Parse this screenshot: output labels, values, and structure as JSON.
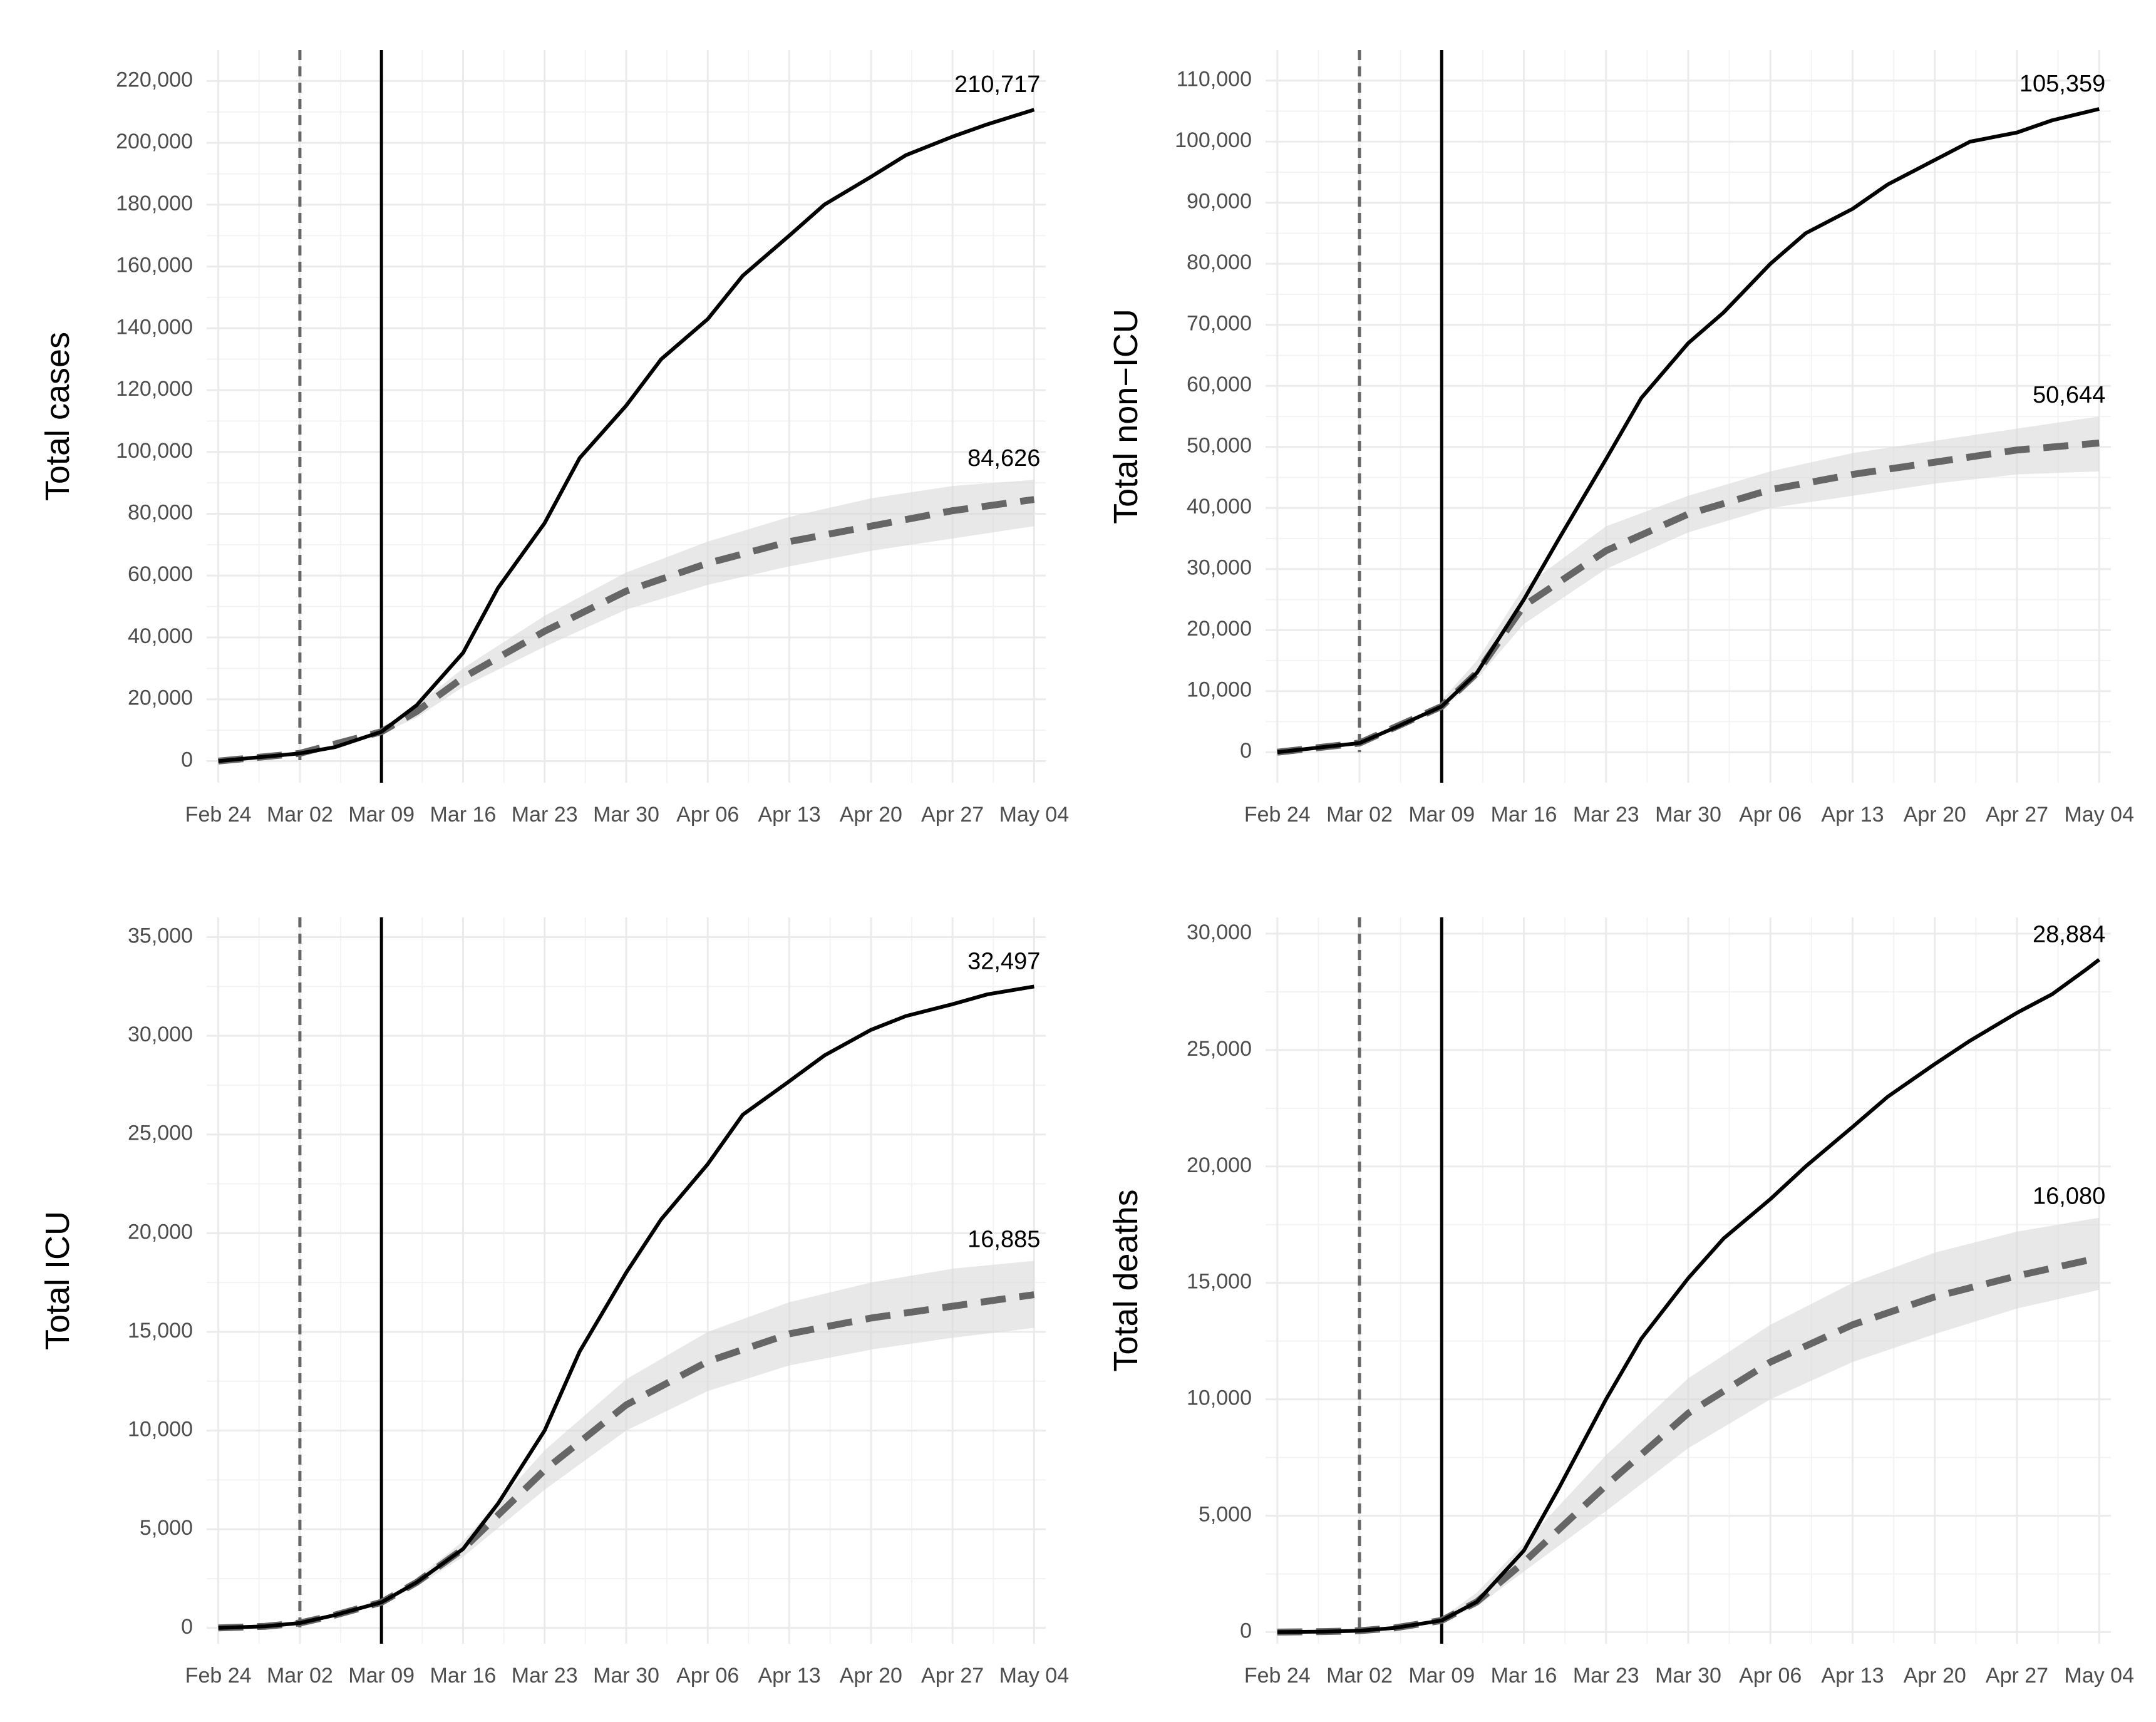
{
  "chart_data": [
    {
      "type": "line",
      "ylabel": "Total cases",
      "x_tick_labels": [
        "Feb 24",
        "Mar 02",
        "Mar 09",
        "Mar 16",
        "Mar 23",
        "Mar 30",
        "Apr 06",
        "Apr 13",
        "Apr 20",
        "Apr 27",
        "May 04"
      ],
      "y_ticks": [
        0,
        20000,
        40000,
        60000,
        80000,
        100000,
        120000,
        140000,
        160000,
        180000,
        200000,
        220000
      ],
      "y_tick_labels": [
        "0",
        "20,000",
        "40,000",
        "60,000",
        "80,000",
        "100,000",
        "120,000",
        "140,000",
        "160,000",
        "180,000",
        "200,000",
        "220,000"
      ],
      "ylim": [
        -7000,
        230000
      ],
      "xlim_days": [
        -1,
        71
      ],
      "vlines_days": {
        "dashed": 7,
        "solid": 14
      },
      "end_labels": {
        "observed": "210,717",
        "counterfactual": "84,626"
      },
      "series": [
        {
          "name": "observed",
          "style": "solid",
          "x_days": [
            0,
            7,
            10,
            14,
            17,
            21,
            24,
            28,
            31,
            35,
            38,
            42,
            45,
            49,
            52,
            56,
            59,
            63,
            66,
            70
          ],
          "values": [
            0,
            2500,
            4500,
            9500,
            18000,
            35000,
            56000,
            77000,
            98000,
            115000,
            130000,
            143000,
            157000,
            170000,
            180000,
            189000,
            196000,
            202000,
            206000,
            210717
          ]
        },
        {
          "name": "counterfactual",
          "style": "dashed",
          "x_days": [
            0,
            7,
            14,
            17,
            21,
            28,
            35,
            42,
            49,
            56,
            63,
            70
          ],
          "values": [
            0,
            2500,
            9500,
            16000,
            27000,
            42000,
            55000,
            64000,
            71000,
            76000,
            81000,
            84626
          ]
        },
        {
          "name": "counterfactual_band",
          "style": "band",
          "x_days": [
            14,
            17,
            21,
            28,
            35,
            42,
            49,
            56,
            63,
            70
          ],
          "lower": [
            9000,
            14000,
            24000,
            37000,
            49000,
            57000,
            63000,
            68000,
            72000,
            76000
          ],
          "upper": [
            10000,
            18000,
            30000,
            47000,
            61000,
            71000,
            79000,
            85000,
            89000,
            91000
          ]
        }
      ]
    },
    {
      "type": "line",
      "ylabel": "Total non−ICU",
      "x_tick_labels": [
        "Feb 24",
        "Mar 02",
        "Mar 09",
        "Mar 16",
        "Mar 23",
        "Mar 30",
        "Apr 06",
        "Apr 13",
        "Apr 20",
        "Apr 27",
        "May 04"
      ],
      "y_ticks": [
        0,
        10000,
        20000,
        30000,
        40000,
        50000,
        60000,
        70000,
        80000,
        90000,
        100000,
        110000
      ],
      "y_tick_labels": [
        "0",
        "10,000",
        "20,000",
        "30,000",
        "40,000",
        "50,000",
        "60,000",
        "70,000",
        "80,000",
        "90,000",
        "100,000",
        "110,000"
      ],
      "ylim": [
        -5000,
        115000
      ],
      "xlim_days": [
        -1,
        71
      ],
      "vlines_days": {
        "dashed": 7,
        "solid": 14
      },
      "end_labels": {
        "observed": "105,359",
        "counterfactual": "50,644"
      },
      "series": [
        {
          "name": "observed",
          "style": "solid",
          "x_days": [
            0,
            7,
            10,
            14,
            17,
            21,
            24,
            28,
            31,
            35,
            38,
            42,
            45,
            49,
            52,
            56,
            59,
            63,
            66,
            70
          ],
          "values": [
            0,
            1500,
            4000,
            7500,
            13000,
            25000,
            35000,
            48000,
            58000,
            67000,
            72000,
            80000,
            85000,
            89000,
            93000,
            97000,
            100000,
            101500,
            103500,
            105359
          ]
        },
        {
          "name": "counterfactual",
          "style": "dashed",
          "x_days": [
            0,
            7,
            14,
            17,
            21,
            28,
            35,
            42,
            49,
            56,
            63,
            70
          ],
          "values": [
            0,
            1500,
            7500,
            13000,
            24000,
            33000,
            39000,
            43000,
            45500,
            47500,
            49500,
            50644
          ]
        },
        {
          "name": "counterfactual_band",
          "style": "band",
          "x_days": [
            14,
            17,
            21,
            28,
            35,
            42,
            49,
            56,
            63,
            70
          ],
          "lower": [
            7000,
            12000,
            21000,
            30000,
            36000,
            40000,
            42000,
            44000,
            45500,
            46000
          ],
          "upper": [
            8500,
            15000,
            27000,
            37000,
            42000,
            46000,
            49000,
            51000,
            53000,
            55000
          ]
        }
      ]
    },
    {
      "type": "line",
      "ylabel": "Total ICU",
      "x_tick_labels": [
        "Feb 24",
        "Mar 02",
        "Mar 09",
        "Mar 16",
        "Mar 23",
        "Mar 30",
        "Apr 06",
        "Apr 13",
        "Apr 20",
        "Apr 27",
        "May 04"
      ],
      "y_ticks": [
        0,
        5000,
        10000,
        15000,
        20000,
        25000,
        30000,
        35000
      ],
      "y_tick_labels": [
        "0",
        "5,000",
        "10,000",
        "15,000",
        "20,000",
        "25,000",
        "30,000",
        "35,000"
      ],
      "ylim": [
        -800,
        36000
      ],
      "xlim_days": [
        -1,
        71
      ],
      "vlines_days": {
        "dashed": 7,
        "solid": 14
      },
      "end_labels": {
        "observed": "32,497",
        "counterfactual": "16,885"
      },
      "series": [
        {
          "name": "observed",
          "style": "solid",
          "x_days": [
            0,
            4,
            7,
            10,
            14,
            17,
            21,
            24,
            28,
            31,
            35,
            38,
            42,
            45,
            49,
            52,
            56,
            59,
            63,
            66,
            70
          ],
          "values": [
            0,
            80,
            250,
            650,
            1300,
            2300,
            4000,
            6300,
            10000,
            14000,
            18000,
            20700,
            23500,
            26000,
            27700,
            29000,
            30300,
            31000,
            31600,
            32100,
            32497
          ]
        },
        {
          "name": "counterfactual",
          "style": "dashed",
          "x_days": [
            0,
            4,
            7,
            10,
            14,
            17,
            21,
            28,
            35,
            42,
            49,
            56,
            63,
            70
          ],
          "values": [
            0,
            80,
            250,
            650,
            1300,
            2300,
            4000,
            8000,
            11300,
            13500,
            14900,
            15700,
            16300,
            16885
          ]
        },
        {
          "name": "counterfactual_band",
          "style": "band",
          "x_days": [
            14,
            17,
            21,
            28,
            35,
            42,
            49,
            56,
            63,
            70
          ],
          "lower": [
            1250,
            2100,
            3600,
            7000,
            10000,
            12000,
            13300,
            14100,
            14700,
            15200
          ],
          "upper": [
            1350,
            2500,
            4400,
            9000,
            12600,
            15000,
            16500,
            17500,
            18200,
            18600
          ]
        }
      ]
    },
    {
      "type": "line",
      "ylabel": "Total deaths",
      "x_tick_labels": [
        "Feb 24",
        "Mar 02",
        "Mar 09",
        "Mar 16",
        "Mar 23",
        "Mar 30",
        "Apr 06",
        "Apr 13",
        "Apr 20",
        "Apr 27",
        "May 04"
      ],
      "y_ticks": [
        0,
        5000,
        10000,
        15000,
        20000,
        25000,
        30000
      ],
      "y_tick_labels": [
        "0",
        "5,000",
        "10,000",
        "15,000",
        "20,000",
        "25,000",
        "30,000"
      ],
      "ylim": [
        -500,
        30700
      ],
      "xlim_days": [
        -1,
        71
      ],
      "vlines_days": {
        "dashed": 7,
        "solid": 14
      },
      "end_labels": {
        "observed": "28,884",
        "counterfactual": "16,080"
      },
      "series": [
        {
          "name": "observed",
          "style": "solid",
          "x_days": [
            0,
            4,
            7,
            10,
            14,
            17,
            21,
            24,
            28,
            31,
            35,
            38,
            42,
            45,
            49,
            52,
            56,
            59,
            63,
            66,
            69,
            70
          ],
          "values": [
            0,
            20,
            60,
            180,
            500,
            1300,
            3500,
            6200,
            10000,
            12600,
            15200,
            16900,
            18600,
            20000,
            21700,
            23000,
            24400,
            25400,
            26600,
            27400,
            28500,
            28884
          ]
        },
        {
          "name": "counterfactual",
          "style": "dashed",
          "x_days": [
            0,
            4,
            7,
            10,
            14,
            17,
            21,
            28,
            35,
            42,
            49,
            56,
            63,
            70
          ],
          "values": [
            0,
            20,
            60,
            180,
            500,
            1300,
            3000,
            6300,
            9400,
            11600,
            13200,
            14400,
            15300,
            16080
          ]
        },
        {
          "name": "counterfactual_band",
          "style": "band",
          "x_days": [
            14,
            17,
            21,
            28,
            35,
            42,
            49,
            56,
            63,
            70
          ],
          "lower": [
            450,
            1100,
            2600,
            5200,
            7900,
            10000,
            11600,
            12800,
            13900,
            14700
          ],
          "upper": [
            600,
            1700,
            3800,
            7600,
            10900,
            13200,
            15000,
            16300,
            17200,
            17800
          ]
        }
      ]
    }
  ]
}
